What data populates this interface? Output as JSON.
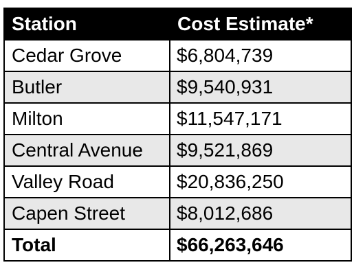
{
  "table": {
    "headers": [
      "Station",
      "Cost Estimate*"
    ],
    "rows": [
      {
        "station": "Cedar Grove",
        "cost": "$6,804,739"
      },
      {
        "station": "Butler",
        "cost": "$9,540,931"
      },
      {
        "station": "Milton",
        "cost": "$11,547,171"
      },
      {
        "station": "Central Avenue",
        "cost": "$9,521,869"
      },
      {
        "station": "Valley Road",
        "cost": "$20,836,250"
      },
      {
        "station": "Capen Street",
        "cost": "$8,012,686"
      }
    ],
    "total": {
      "label": "Total",
      "cost": "$66,263,646"
    }
  },
  "colors": {
    "header_background": "#000000",
    "header_text": "#ffffff",
    "alternate_row_background": "#e8e8e8",
    "border": "#000000"
  }
}
